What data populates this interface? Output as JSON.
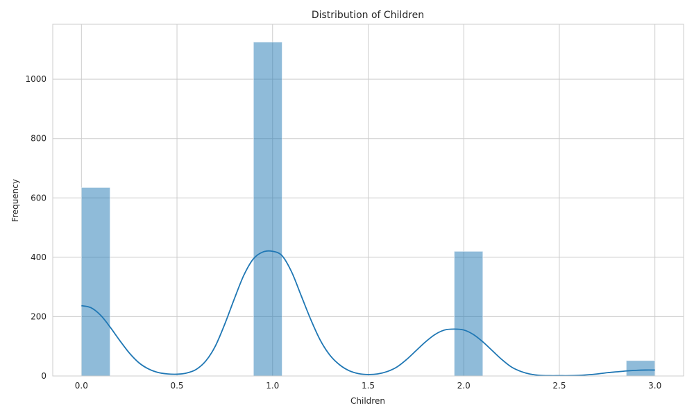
{
  "chart_data": {
    "type": "bar",
    "title": "Distribution of Children",
    "xlabel": "Children",
    "ylabel": "Frequency",
    "xlim": [
      -0.15,
      3.15
    ],
    "ylim": [
      0,
      1185
    ],
    "xticks": [
      0.0,
      0.5,
      1.0,
      1.5,
      2.0,
      2.5,
      3.0
    ],
    "xtick_labels": [
      "0.0",
      "0.5",
      "1.0",
      "1.5",
      "2.0",
      "2.5",
      "3.0"
    ],
    "yticks": [
      0,
      200,
      400,
      600,
      800,
      1000
    ],
    "ytick_labels": [
      "0",
      "200",
      "400",
      "600",
      "800",
      "1000"
    ],
    "grid": true,
    "bins": [
      {
        "x0": 0.0,
        "x1": 0.15,
        "value": 635
      },
      {
        "x0": 0.9,
        "x1": 1.05,
        "value": 1125
      },
      {
        "x0": 1.95,
        "x1": 2.1,
        "value": 420
      },
      {
        "x0": 2.85,
        "x1": 3.0,
        "value": 52
      }
    ],
    "kde": {
      "x": [
        0.0,
        0.05,
        0.1,
        0.15,
        0.2,
        0.25,
        0.3,
        0.35,
        0.4,
        0.45,
        0.5,
        0.55,
        0.6,
        0.65,
        0.7,
        0.75,
        0.8,
        0.85,
        0.9,
        0.95,
        1.0,
        1.05,
        1.1,
        1.15,
        1.2,
        1.25,
        1.3,
        1.35,
        1.4,
        1.45,
        1.5,
        1.55,
        1.6,
        1.65,
        1.7,
        1.75,
        1.8,
        1.85,
        1.9,
        1.95,
        2.0,
        2.05,
        2.1,
        2.15,
        2.2,
        2.25,
        2.3,
        2.35,
        2.4,
        2.45,
        2.5,
        2.55,
        2.6,
        2.65,
        2.7,
        2.75,
        2.8,
        2.85,
        2.9,
        2.95,
        3.0
      ],
      "y": [
        237,
        230,
        205,
        165,
        120,
        78,
        45,
        24,
        12,
        7,
        6,
        10,
        22,
        50,
        100,
        175,
        260,
        340,
        395,
        418,
        420,
        405,
        350,
        270,
        190,
        120,
        70,
        38,
        18,
        8,
        5,
        7,
        15,
        30,
        55,
        85,
        115,
        140,
        155,
        158,
        155,
        140,
        115,
        85,
        55,
        30,
        15,
        6,
        2,
        1,
        1,
        1,
        2,
        4,
        7,
        11,
        14,
        17,
        19,
        20,
        20
      ]
    },
    "colors": {
      "bar_fill": "#1f77b4",
      "bar_opacity": "0.5",
      "kde_line": "#1f77b4",
      "grid": "#cccccc",
      "spine": "#cccccc"
    }
  }
}
